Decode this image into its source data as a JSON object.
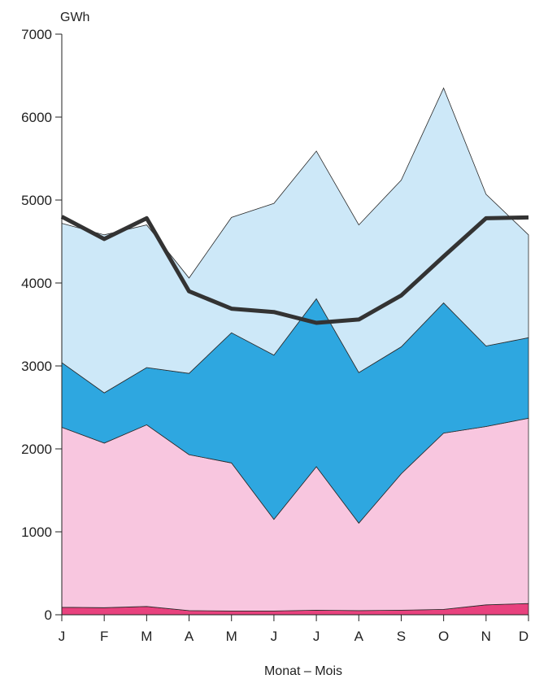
{
  "chart_data": {
    "type": "area",
    "stacked": true,
    "ylabel": "GWh",
    "xlabel": "Monat – Mois",
    "ylim": [
      0,
      7000
    ],
    "yticks": [
      0,
      1000,
      2000,
      3000,
      4000,
      5000,
      6000,
      7000
    ],
    "categories": [
      "J",
      "F",
      "M",
      "A",
      "M",
      "J",
      "J",
      "A",
      "S",
      "O",
      "N",
      "D"
    ],
    "grid": false,
    "series": [
      {
        "color": "#e8427e",
        "values": [
          90,
          85,
          100,
          50,
          45,
          45,
          55,
          50,
          55,
          65,
          120,
          135
        ]
      },
      {
        "color": "#f8c6df",
        "values": [
          2170,
          1985,
          2190,
          1880,
          1785,
          1105,
          1730,
          1055,
          1645,
          2125,
          2150,
          2235
        ]
      },
      {
        "color": "#2ea7e0",
        "values": [
          780,
          605,
          690,
          980,
          1570,
          1980,
          2025,
          1815,
          1530,
          1570,
          970,
          970
        ]
      },
      {
        "color": "#cde8f8",
        "values": [
          1680,
          1905,
          1720,
          1150,
          1390,
          1830,
          1780,
          1780,
          2010,
          2590,
          1830,
          1240
        ]
      }
    ],
    "line": {
      "color": "#333333",
      "values": [
        4800,
        4530,
        4780,
        3900,
        3690,
        3650,
        3520,
        3560,
        3850,
        4320,
        4780,
        4790
      ]
    }
  }
}
